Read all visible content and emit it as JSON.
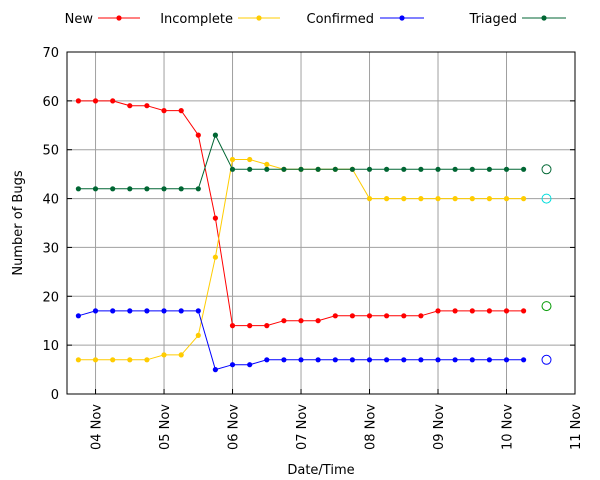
{
  "chart_data": {
    "type": "line",
    "xlabel": "Date/Time",
    "ylabel": "Number of Bugs",
    "ylim": [
      0,
      70
    ],
    "yticks": [
      0,
      10,
      20,
      30,
      40,
      50,
      60,
      70
    ],
    "xlim": [
      "2010-11-03 14:00",
      "2010-11-11 00:00"
    ],
    "xticks": [
      {
        "label": "04 Nov",
        "date": "2010-11-04"
      },
      {
        "label": "05 Nov",
        "date": "2010-11-05"
      },
      {
        "label": "06 Nov",
        "date": "2010-11-06"
      },
      {
        "label": "07 Nov",
        "date": "2010-11-07"
      },
      {
        "label": "08 Nov",
        "date": "2010-11-08"
      },
      {
        "label": "09 Nov",
        "date": "2010-11-09"
      },
      {
        "label": "10 Nov",
        "date": "2010-11-10"
      },
      {
        "label": "11 Nov",
        "date": "2010-11-11"
      }
    ],
    "grid": true,
    "legend_position": "top",
    "x": [
      "2010-11-03 18:00",
      "2010-11-04 00:00",
      "2010-11-04 06:00",
      "2010-11-04 12:00",
      "2010-11-04 18:00",
      "2010-11-05 00:00",
      "2010-11-05 06:00",
      "2010-11-05 12:00",
      "2010-11-05 18:00",
      "2010-11-06 00:00",
      "2010-11-06 06:00",
      "2010-11-06 12:00",
      "2010-11-06 18:00",
      "2010-11-07 00:00",
      "2010-11-07 06:00",
      "2010-11-07 12:00",
      "2010-11-07 18:00",
      "2010-11-08 00:00",
      "2010-11-08 06:00",
      "2010-11-08 12:00",
      "2010-11-08 18:00",
      "2010-11-09 00:00",
      "2010-11-09 06:00",
      "2010-11-09 12:00",
      "2010-11-09 18:00",
      "2010-11-10 00:00",
      "2010-11-10 06:00"
    ],
    "series": [
      {
        "name": "New",
        "color": "#ff0000",
        "values": [
          60,
          60,
          60,
          59,
          59,
          58,
          58,
          53,
          36,
          14,
          14,
          14,
          15,
          15,
          15,
          16,
          16,
          16,
          16,
          16,
          16,
          17,
          17,
          17,
          17,
          17,
          17
        ]
      },
      {
        "name": "Incomplete",
        "color": "#ffcc00",
        "values": [
          7,
          7,
          7,
          7,
          7,
          8,
          8,
          12,
          28,
          48,
          48,
          47,
          46,
          46,
          46,
          46,
          46,
          40,
          40,
          40,
          40,
          40,
          40,
          40,
          40,
          40,
          40
        ]
      },
      {
        "name": "Confirmed",
        "color": "#0000ff",
        "values": [
          16,
          17,
          17,
          17,
          17,
          17,
          17,
          17,
          5,
          6,
          6,
          7,
          7,
          7,
          7,
          7,
          7,
          7,
          7,
          7,
          7,
          7,
          7,
          7,
          7,
          7,
          7
        ]
      },
      {
        "name": "Triaged",
        "color": "#006633",
        "values": [
          42,
          42,
          42,
          42,
          42,
          42,
          42,
          42,
          53,
          46,
          46,
          46,
          46,
          46,
          46,
          46,
          46,
          46,
          46,
          46,
          46,
          46,
          46,
          46,
          46,
          46,
          46
        ]
      }
    ],
    "end_markers": [
      {
        "date": "2010-11-10 14:00",
        "value": 46,
        "color": "#006633"
      },
      {
        "date": "2010-11-10 14:00",
        "value": 40,
        "color": "#00dddd"
      },
      {
        "date": "2010-11-10 14:00",
        "value": 18,
        "color": "#009900"
      },
      {
        "date": "2010-11-10 14:00",
        "value": 7,
        "color": "#0000ff"
      }
    ]
  }
}
